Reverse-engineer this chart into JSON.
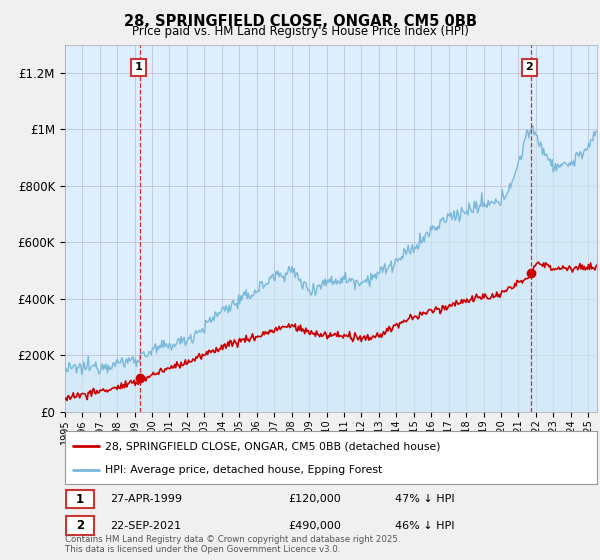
{
  "title": "28, SPRINGFIELD CLOSE, ONGAR, CM5 0BB",
  "subtitle": "Price paid vs. HM Land Registry's House Price Index (HPI)",
  "ylim": [
    0,
    1300000
  ],
  "yticks": [
    0,
    200000,
    400000,
    600000,
    800000,
    1000000,
    1200000
  ],
  "ytick_labels": [
    "£0",
    "£200K",
    "£400K",
    "£600K",
    "£800K",
    "£1M",
    "£1.2M"
  ],
  "hpi_color": "#7ab8d9",
  "hpi_fill_color": "#d0e8f5",
  "price_color": "#cc0000",
  "background_color": "#f0f0f0",
  "plot_bg_color": "#ddeeff",
  "marker1_year": 1999.32,
  "marker1_price": 120000,
  "marker2_year": 2021.73,
  "marker2_price": 490000,
  "marker1_date": "27-APR-1999",
  "marker1_amount": "£120,000",
  "marker1_pct": "47% ↓ HPI",
  "marker2_date": "22-SEP-2021",
  "marker2_amount": "£490,000",
  "marker2_pct": "46% ↓ HPI",
  "legend_line1": "28, SPRINGFIELD CLOSE, ONGAR, CM5 0BB (detached house)",
  "legend_line2": "HPI: Average price, detached house, Epping Forest",
  "footer": "Contains HM Land Registry data © Crown copyright and database right 2025.\nThis data is licensed under the Open Government Licence v3.0.",
  "xmin": 1995,
  "xmax": 2025.5
}
